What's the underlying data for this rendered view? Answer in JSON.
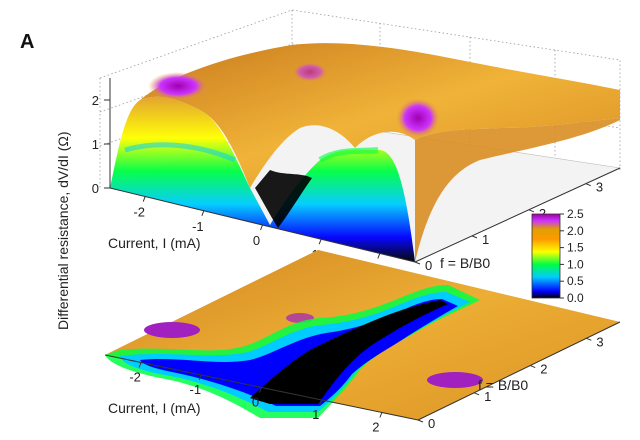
{
  "figure": {
    "panel_label": "A"
  },
  "chart_data": [
    {
      "type": "surface",
      "panel": "3d-surface",
      "xlabel": "Current, I (mA)",
      "ylabel": "f = B/B0",
      "zlabel": "Differential resistance, dV/dI (Ω)",
      "x_ticks": [
        "-2",
        "-1",
        "0",
        "1",
        "2"
      ],
      "y_ticks": [
        "0",
        "1",
        "2",
        "3"
      ],
      "z_ticks": [
        "0",
        "1",
        "2"
      ],
      "xlim": [
        -2.6,
        2.6
      ],
      "ylim": [
        0,
        3.6
      ],
      "zlim": [
        0,
        2.5
      ],
      "colormap": [
        "#000000",
        "#0000ff",
        "#00ffff",
        "#00ff00",
        "#ffff00",
        "#ff9900",
        "#e0a000",
        "#cc33ff",
        "#990099"
      ],
      "description_values": {
        "peak_resistance": 2.4,
        "zero_bias_minimum": 0.0
      }
    },
    {
      "type": "heatmap",
      "panel": "2d-projection",
      "xlabel": "Current, I (mA)",
      "ylabel": "f = B/B0",
      "x_ticks": [
        "-2",
        "-1",
        "0",
        "1",
        "2"
      ],
      "y_ticks": [
        "0",
        "1",
        "2",
        "3"
      ],
      "xlim": [
        -2.6,
        2.6
      ],
      "ylim": [
        0,
        3.6
      ]
    }
  ],
  "colorbar": {
    "ticks": [
      "2.5",
      "2.0",
      "1.5",
      "1.0",
      "0.5",
      "0.0"
    ],
    "range": [
      0,
      2.5
    ]
  },
  "colors": {
    "plateau": "#e3a12a",
    "peak": "#a020c0",
    "trough": "#000000"
  }
}
